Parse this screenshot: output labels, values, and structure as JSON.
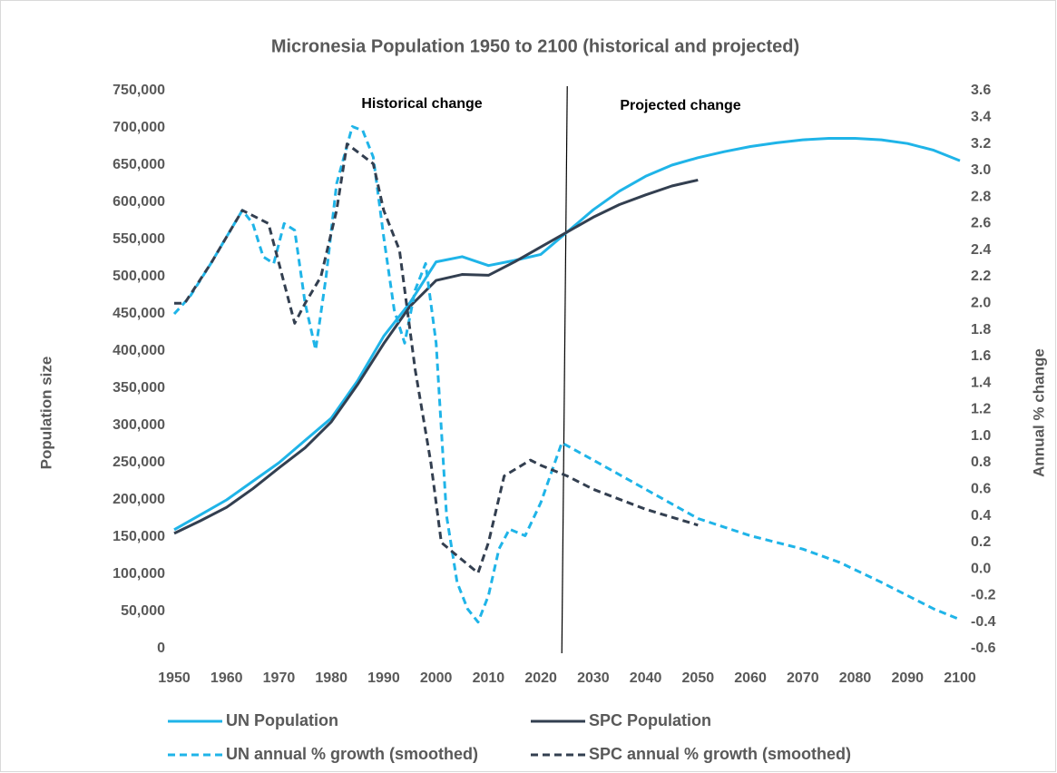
{
  "chart_data": {
    "type": "line",
    "title": "Micronesia Population 1950 to 2100 (historical and projected)",
    "ylabel": "Population size",
    "y2label": "Annual % change",
    "annotations": [
      "Historical change",
      "Projected change"
    ],
    "divider_x": 2024,
    "xlim": [
      1950,
      2100
    ],
    "xticks": [
      1950,
      1960,
      1970,
      1980,
      1990,
      2000,
      2010,
      2020,
      2030,
      2040,
      2050,
      2060,
      2070,
      2080,
      2090,
      2100
    ],
    "ylim": [
      0,
      750000
    ],
    "yticks": [
      0,
      {
        "value": 50000,
        "label": "50,000"
      },
      {
        "value": 100000,
        "label": "100,000"
      },
      {
        "value": 150000,
        "label": "150,000"
      },
      {
        "value": 200000,
        "label": "200,000"
      },
      {
        "value": 250000,
        "label": "250,000"
      },
      {
        "value": 300000,
        "label": "300,000"
      },
      {
        "value": 350000,
        "label": "350,000"
      },
      {
        "value": 400000,
        "label": "400,000"
      },
      {
        "value": 450000,
        "label": "450,000"
      },
      {
        "value": 500000,
        "label": "500,000"
      },
      {
        "value": 550000,
        "label": "550,000"
      },
      {
        "value": 600000,
        "label": "600,000"
      },
      {
        "value": 650000,
        "label": "650,000"
      },
      {
        "value": 700000,
        "label": "700,000"
      },
      {
        "value": 750000,
        "label": "750,000"
      }
    ],
    "y2lim": [
      -0.6,
      3.6
    ],
    "y2ticks": [
      -0.6,
      -0.4,
      -0.2,
      {
        "value": 0,
        "label": "0.0"
      },
      0.2,
      0.4,
      0.6,
      0.8,
      {
        "value": 1,
        "label": "1.0"
      },
      1.2,
      1.4,
      1.6,
      1.8,
      {
        "value": 2,
        "label": "2.0"
      },
      2.2,
      2.4,
      2.6,
      2.8,
      {
        "value": 3,
        "label": "3.0"
      },
      3.2,
      3.4,
      3.6
    ],
    "legend": "bottom",
    "series": [
      {
        "name": "UN Population",
        "color": "#1fb4e8",
        "dash": false,
        "x": [
          1950,
          1955,
          1960,
          1965,
          1970,
          1975,
          1980,
          1985,
          1990,
          1995,
          2000,
          2005,
          2010,
          2015,
          2020,
          2025,
          2030,
          2035,
          2040,
          2045,
          2050,
          2055,
          2060,
          2065,
          2070,
          2075,
          2080,
          2085,
          2090,
          2095,
          2100
        ],
        "values": [
          160000,
          180000,
          200000,
          225000,
          250000,
          280000,
          310000,
          360000,
          420000,
          465000,
          520000,
          527000,
          515000,
          522000,
          530000,
          560000,
          590000,
          615000,
          635000,
          650000,
          660000,
          668000,
          675000,
          680000,
          684000,
          686000,
          686000,
          684000,
          679000,
          670000,
          656000
        ]
      },
      {
        "name": "SPC Population",
        "color": "#333f50",
        "dash": false,
        "x": [
          1950,
          1955,
          1960,
          1965,
          1970,
          1975,
          1980,
          1985,
          1990,
          1995,
          2000,
          2005,
          2010,
          2015,
          2020,
          2025,
          2030,
          2035,
          2040,
          2045,
          2050
        ],
        "values": [
          155000,
          172000,
          190000,
          215000,
          243000,
          270000,
          305000,
          355000,
          410000,
          460000,
          495000,
          503000,
          502000,
          520000,
          540000,
          560000,
          580000,
          597000,
          610000,
          622000,
          630000
        ]
      },
      {
        "name": "UN annual % growth (smoothed)",
        "color": "#1fb4e8",
        "dash": true,
        "axis": "y2",
        "x": [
          1950,
          1953,
          1957,
          1960,
          1963,
          1965,
          1967,
          1969,
          1971,
          1973,
          1975,
          1977,
          1979,
          1981,
          1984,
          1986,
          1988,
          1990,
          1992,
          1994,
          1996,
          1998,
          2000,
          2002,
          2004,
          2006,
          2008,
          2010,
          2012,
          2014,
          2017,
          2020,
          2024,
          2030,
          2040,
          2050,
          2060,
          2070,
          2077,
          2085,
          2095,
          2100
        ],
        "values": [
          1.92,
          2.05,
          2.3,
          2.5,
          2.7,
          2.6,
          2.35,
          2.3,
          2.6,
          2.55,
          2.0,
          1.65,
          2.2,
          2.9,
          3.33,
          3.3,
          3.1,
          2.5,
          1.95,
          1.7,
          2.1,
          2.3,
          1.7,
          0.4,
          -0.1,
          -0.3,
          -0.4,
          -0.2,
          0.15,
          0.3,
          0.25,
          0.5,
          0.95,
          0.82,
          0.6,
          0.38,
          0.25,
          0.15,
          0.05,
          -0.1,
          -0.3,
          -0.38
        ]
      },
      {
        "name": "SPC annual % growth (smoothed)",
        "color": "#333f50",
        "dash": true,
        "axis": "y2",
        "x": [
          1950,
          1952,
          1957,
          1960,
          1963,
          1968,
          1970,
          1973,
          1975,
          1978,
          1981,
          1983,
          1988,
          1990,
          1993,
          1996,
          1999,
          2001,
          2004,
          2008,
          2010,
          2013,
          2018,
          2020,
          2025,
          2030,
          2040,
          2050
        ],
        "values": [
          2.0,
          2.0,
          2.3,
          2.5,
          2.7,
          2.6,
          2.3,
          1.85,
          2.0,
          2.2,
          2.7,
          3.2,
          3.05,
          2.7,
          2.4,
          1.5,
          0.8,
          0.2,
          0.1,
          -0.03,
          0.2,
          0.7,
          0.82,
          0.78,
          0.7,
          0.6,
          0.45,
          0.33
        ]
      }
    ]
  }
}
